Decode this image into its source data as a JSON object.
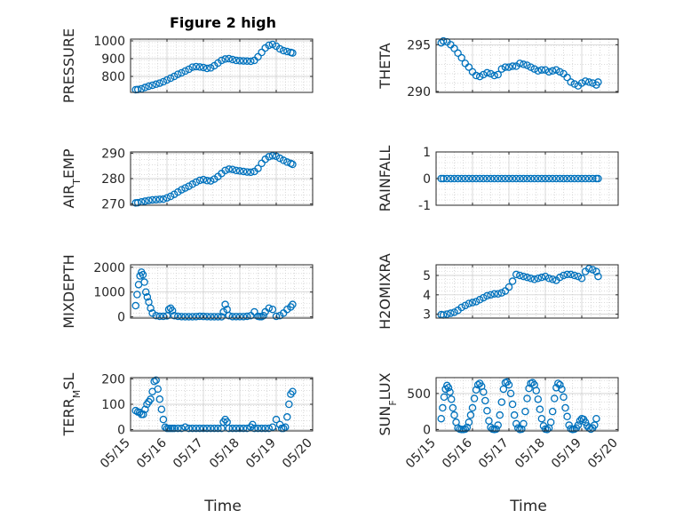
{
  "figure": {
    "title": "Figure 2 high",
    "xlabel": "Time"
  },
  "colors": {
    "marker": "#0072bd",
    "axis": "#262626",
    "grid": "#c8c8c8"
  },
  "chart_data": [
    {
      "id": "pressure",
      "type": "scatter",
      "ylabel": [
        "PRESSURE"
      ],
      "ylim": [
        710,
        1010
      ],
      "yticks": [
        "800",
        "900",
        "1000"
      ],
      "ytick_values": [
        800,
        900,
        1000
      ],
      "xlim": [
        0,
        5
      ],
      "xticks": [
        "05/15",
        "05/16",
        "05/17",
        "05/18",
        "05/19",
        "05/20"
      ],
      "grid": true,
      "x": [
        0.14,
        0.2,
        0.3,
        0.4,
        0.5,
        0.6,
        0.7,
        0.8,
        0.9,
        1.0,
        1.1,
        1.2,
        1.3,
        1.4,
        1.5,
        1.6,
        1.7,
        1.8,
        1.9,
        2.0,
        2.1,
        2.2,
        2.3,
        2.4,
        2.5,
        2.6,
        2.7,
        2.8,
        2.9,
        3.0,
        3.1,
        3.2,
        3.3,
        3.4,
        3.5,
        3.6,
        3.7,
        3.8,
        3.9,
        4.0,
        4.1,
        4.2,
        4.3,
        4.4,
        4.45
      ],
      "y": [
        725,
        726,
        730,
        738,
        745,
        750,
        756,
        762,
        770,
        780,
        790,
        800,
        812,
        820,
        830,
        840,
        852,
        855,
        853,
        850,
        845,
        848,
        860,
        875,
        890,
        898,
        900,
        895,
        890,
        888,
        887,
        886,
        885,
        890,
        910,
        935,
        960,
        975,
        980,
        970,
        955,
        945,
        940,
        935,
        932
      ]
    },
    {
      "id": "theta",
      "type": "scatter",
      "ylabel": [
        "THETA"
      ],
      "ylim": [
        289.9,
        295.6
      ],
      "yticks": [
        "290",
        "295"
      ],
      "ytick_values": [
        290,
        295
      ],
      "xlim": [
        0,
        5
      ],
      "xticks": [
        "05/15",
        "05/16",
        "05/17",
        "05/18",
        "05/19",
        "05/20"
      ],
      "grid": true,
      "x": [
        0.14,
        0.2,
        0.3,
        0.4,
        0.5,
        0.6,
        0.7,
        0.8,
        0.9,
        1.0,
        1.1,
        1.2,
        1.3,
        1.4,
        1.5,
        1.6,
        1.7,
        1.8,
        1.9,
        2.0,
        2.1,
        2.2,
        2.3,
        2.4,
        2.5,
        2.6,
        2.7,
        2.8,
        2.9,
        3.0,
        3.1,
        3.2,
        3.3,
        3.4,
        3.5,
        3.6,
        3.7,
        3.8,
        3.9,
        4.0,
        4.1,
        4.2,
        4.3,
        4.4,
        4.45
      ],
      "y": [
        295.2,
        295.4,
        295.3,
        295.0,
        294.6,
        294.1,
        293.6,
        293.0,
        292.6,
        292.1,
        291.7,
        291.6,
        291.8,
        292.0,
        291.9,
        291.7,
        291.8,
        292.4,
        292.6,
        292.6,
        292.7,
        292.7,
        293.0,
        292.9,
        292.8,
        292.6,
        292.4,
        292.2,
        292.3,
        292.3,
        292.1,
        292.2,
        292.3,
        292.1,
        291.9,
        291.5,
        291.0,
        290.8,
        290.6,
        290.9,
        291.1,
        291.0,
        290.9,
        290.7,
        291.0
      ]
    },
    {
      "id": "air_temp",
      "type": "scatter",
      "ylabel": [
        "AIR",
        "T",
        "EMP"
      ],
      "ylim": [
        269.5,
        290.5
      ],
      "yticks": [
        "270",
        "280",
        "290"
      ],
      "ytick_values": [
        270,
        280,
        290
      ],
      "xlim": [
        0,
        5
      ],
      "xticks": [
        "05/15",
        "05/16",
        "05/17",
        "05/18",
        "05/19",
        "05/20"
      ],
      "grid": true,
      "x": [
        0.14,
        0.2,
        0.3,
        0.4,
        0.5,
        0.6,
        0.7,
        0.8,
        0.9,
        1.0,
        1.1,
        1.2,
        1.3,
        1.4,
        1.5,
        1.6,
        1.7,
        1.8,
        1.9,
        2.0,
        2.1,
        2.2,
        2.3,
        2.4,
        2.5,
        2.6,
        2.7,
        2.8,
        2.9,
        3.0,
        3.1,
        3.2,
        3.3,
        3.4,
        3.5,
        3.6,
        3.7,
        3.8,
        3.9,
        4.0,
        4.1,
        4.2,
        4.3,
        4.4,
        4.45
      ],
      "y": [
        270.4,
        270.5,
        270.8,
        271.1,
        271.4,
        271.6,
        271.7,
        271.8,
        271.9,
        272.4,
        273.0,
        273.8,
        274.7,
        275.6,
        276.3,
        277.0,
        277.8,
        278.6,
        279.3,
        279.6,
        279.2,
        279.1,
        279.8,
        280.8,
        282.0,
        283.2,
        283.7,
        283.6,
        283.2,
        283.0,
        282.8,
        282.6,
        282.5,
        282.8,
        284.0,
        286.0,
        287.6,
        288.6,
        289.0,
        288.8,
        288.0,
        287.2,
        286.5,
        286.0,
        285.6
      ]
    },
    {
      "id": "rainfall",
      "type": "scatter",
      "ylabel": [
        "RAINFALL"
      ],
      "ylim": [
        -1,
        1
      ],
      "yticks": [
        "-1",
        "0",
        "1"
      ],
      "ytick_values": [
        -1,
        0,
        1
      ],
      "xlim": [
        0,
        5
      ],
      "xticks": [
        "05/15",
        "05/16",
        "05/17",
        "05/18",
        "05/19",
        "05/20"
      ],
      "grid": true,
      "x": [
        0.14,
        0.2,
        0.3,
        0.4,
        0.5,
        0.6,
        0.7,
        0.8,
        0.9,
        1.0,
        1.1,
        1.2,
        1.3,
        1.4,
        1.5,
        1.6,
        1.7,
        1.8,
        1.9,
        2.0,
        2.1,
        2.2,
        2.3,
        2.4,
        2.5,
        2.6,
        2.7,
        2.8,
        2.9,
        3.0,
        3.1,
        3.2,
        3.3,
        3.4,
        3.5,
        3.6,
        3.7,
        3.8,
        3.9,
        4.0,
        4.1,
        4.2,
        4.3,
        4.4,
        4.45
      ],
      "y": [
        0,
        0,
        0,
        0,
        0,
        0,
        0,
        0,
        0,
        0,
        0,
        0,
        0,
        0,
        0,
        0,
        0,
        0,
        0,
        0,
        0,
        0,
        0,
        0,
        0,
        0,
        0,
        0,
        0,
        0,
        0,
        0,
        0,
        0,
        0,
        0,
        0,
        0,
        0,
        0,
        0,
        0,
        0,
        0,
        0
      ]
    },
    {
      "id": "mixdepth",
      "type": "scatter",
      "ylabel": [
        "MIXDEPTH"
      ],
      "ylim": [
        -50,
        2100
      ],
      "yticks": [
        "0",
        "1000",
        "2000"
      ],
      "ytick_values": [
        0,
        1000,
        2000
      ],
      "xlim": [
        0,
        5
      ],
      "xticks": [
        "05/15",
        "05/16",
        "05/17",
        "05/18",
        "05/19",
        "05/20"
      ],
      "grid": true,
      "x": [
        0.14,
        0.18,
        0.22,
        0.26,
        0.3,
        0.34,
        0.38,
        0.42,
        0.46,
        0.5,
        0.55,
        0.6,
        0.7,
        0.8,
        0.9,
        1.0,
        1.05,
        1.1,
        1.15,
        1.2,
        1.3,
        1.4,
        1.5,
        1.6,
        1.7,
        1.8,
        1.9,
        2.0,
        2.1,
        2.2,
        2.3,
        2.4,
        2.5,
        2.55,
        2.6,
        2.65,
        2.7,
        2.8,
        2.9,
        3.0,
        3.1,
        3.2,
        3.3,
        3.4,
        3.5,
        3.55,
        3.6,
        3.65,
        3.7,
        3.8,
        3.9,
        4.0,
        4.1,
        4.2,
        4.3,
        4.4,
        4.45
      ],
      "y": [
        450,
        900,
        1300,
        1650,
        1800,
        1700,
        1400,
        1000,
        800,
        600,
        350,
        150,
        50,
        20,
        20,
        40,
        300,
        350,
        250,
        50,
        20,
        10,
        5,
        5,
        5,
        10,
        20,
        15,
        10,
        5,
        5,
        5,
        5,
        200,
        500,
        300,
        50,
        10,
        10,
        10,
        10,
        20,
        50,
        200,
        20,
        10,
        10,
        50,
        200,
        350,
        300,
        20,
        50,
        150,
        300,
        400,
        500
      ]
    },
    {
      "id": "h2omixra",
      "type": "scatter",
      "ylabel": [
        "H2OMIXRA"
      ],
      "ylim": [
        2.8,
        5.55
      ],
      "yticks": [
        "3",
        "4",
        "5"
      ],
      "ytick_values": [
        3,
        4,
        5
      ],
      "xlim": [
        0,
        5
      ],
      "xticks": [
        "05/15",
        "05/16",
        "05/17",
        "05/18",
        "05/19",
        "05/20"
      ],
      "grid": true,
      "x": [
        0.14,
        0.2,
        0.3,
        0.4,
        0.5,
        0.6,
        0.7,
        0.8,
        0.9,
        1.0,
        1.1,
        1.2,
        1.3,
        1.4,
        1.5,
        1.6,
        1.7,
        1.8,
        1.9,
        2.0,
        2.1,
        2.2,
        2.3,
        2.4,
        2.5,
        2.6,
        2.7,
        2.8,
        2.9,
        3.0,
        3.1,
        3.2,
        3.3,
        3.4,
        3.5,
        3.6,
        3.7,
        3.8,
        3.9,
        4.0,
        4.1,
        4.2,
        4.3,
        4.4,
        4.45
      ],
      "y": [
        2.98,
        2.96,
        3.0,
        3.05,
        3.1,
        3.2,
        3.35,
        3.45,
        3.55,
        3.6,
        3.65,
        3.75,
        3.85,
        3.95,
        4.0,
        4.05,
        4.05,
        4.1,
        4.2,
        4.4,
        4.7,
        5.05,
        5.0,
        4.95,
        4.9,
        4.85,
        4.8,
        4.85,
        4.9,
        4.95,
        4.85,
        4.8,
        4.75,
        4.9,
        5.0,
        5.05,
        5.05,
        5.0,
        4.95,
        4.85,
        5.2,
        5.35,
        5.3,
        5.2,
        4.95
      ]
    },
    {
      "id": "terr_msl",
      "type": "scatter",
      "ylabel": [
        "TERR",
        "M",
        "SL"
      ],
      "ylim": [
        -5,
        205
      ],
      "yticks": [
        "0",
        "100",
        "200"
      ],
      "ytick_values": [
        0,
        100,
        200
      ],
      "xlim": [
        0,
        5
      ],
      "xticks": [
        "05/15",
        "05/16",
        "05/17",
        "05/18",
        "05/19",
        "05/20"
      ],
      "grid": true,
      "x": [
        0.14,
        0.2,
        0.25,
        0.3,
        0.35,
        0.4,
        0.45,
        0.5,
        0.55,
        0.6,
        0.65,
        0.7,
        0.75,
        0.8,
        0.85,
        0.9,
        0.95,
        1.0,
        1.05,
        1.1,
        1.15,
        1.2,
        1.3,
        1.4,
        1.5,
        1.6,
        1.7,
        1.8,
        1.9,
        2.0,
        2.1,
        2.2,
        2.3,
        2.4,
        2.5,
        2.55,
        2.6,
        2.65,
        2.7,
        2.8,
        2.9,
        3.0,
        3.1,
        3.2,
        3.3,
        3.35,
        3.4,
        3.5,
        3.6,
        3.7,
        3.8,
        3.9,
        4.0,
        4.1,
        4.15,
        4.2,
        4.25,
        4.3,
        4.35,
        4.4,
        4.45
      ],
      "y": [
        75,
        70,
        68,
        60,
        60,
        80,
        100,
        110,
        120,
        150,
        190,
        195,
        160,
        120,
        80,
        40,
        10,
        5,
        5,
        5,
        5,
        5,
        5,
        5,
        10,
        5,
        5,
        5,
        5,
        5,
        5,
        5,
        5,
        5,
        5,
        30,
        40,
        30,
        5,
        5,
        5,
        5,
        5,
        5,
        10,
        20,
        5,
        5,
        5,
        5,
        5,
        10,
        40,
        20,
        5,
        5,
        10,
        50,
        100,
        140,
        150
      ]
    },
    {
      "id": "sun_flux",
      "type": "scatter",
      "ylabel": [
        "SUN",
        "F",
        "LUX"
      ],
      "ylim": [
        -20,
        720
      ],
      "yticks": [
        "0",
        "500"
      ],
      "ytick_values": [
        0,
        500
      ],
      "xlim": [
        0,
        5
      ],
      "xticks": [
        "05/15",
        "05/16",
        "05/17",
        "05/18",
        "05/19",
        "05/20"
      ],
      "grid": true,
      "x": [
        0.14,
        0.18,
        0.22,
        0.26,
        0.3,
        0.34,
        0.38,
        0.42,
        0.46,
        0.5,
        0.55,
        0.6,
        0.65,
        0.7,
        0.75,
        0.8,
        0.85,
        0.9,
        0.95,
        1.0,
        1.05,
        1.1,
        1.15,
        1.2,
        1.25,
        1.3,
        1.35,
        1.4,
        1.45,
        1.5,
        1.55,
        1.6,
        1.65,
        1.7,
        1.75,
        1.8,
        1.85,
        1.9,
        1.95,
        2.0,
        2.05,
        2.1,
        2.15,
        2.2,
        2.25,
        2.3,
        2.35,
        2.4,
        2.45,
        2.5,
        2.55,
        2.6,
        2.65,
        2.7,
        2.75,
        2.8,
        2.85,
        2.9,
        2.95,
        3.0,
        3.05,
        3.1,
        3.15,
        3.2,
        3.25,
        3.3,
        3.35,
        3.4,
        3.45,
        3.5,
        3.55,
        3.6,
        3.65,
        3.7,
        3.75,
        3.8,
        3.85,
        3.9,
        3.95,
        4.0,
        4.05,
        4.1,
        4.15,
        4.2,
        4.25,
        4.3,
        4.35,
        4.4
      ],
      "y": [
        150,
        300,
        450,
        560,
        610,
        580,
        520,
        420,
        300,
        200,
        100,
        20,
        5,
        0,
        0,
        5,
        30,
        100,
        200,
        300,
        430,
        550,
        620,
        640,
        600,
        520,
        400,
        260,
        120,
        30,
        5,
        0,
        5,
        60,
        200,
        380,
        560,
        650,
        660,
        620,
        500,
        350,
        200,
        80,
        20,
        0,
        5,
        80,
        250,
        430,
        570,
        640,
        650,
        620,
        540,
        420,
        280,
        150,
        50,
        5,
        0,
        20,
        100,
        250,
        430,
        580,
        640,
        620,
        560,
        450,
        300,
        180,
        60,
        10,
        0,
        5,
        20,
        60,
        120,
        150,
        140,
        100,
        50,
        20,
        5,
        20,
        60,
        150
      ]
    }
  ]
}
